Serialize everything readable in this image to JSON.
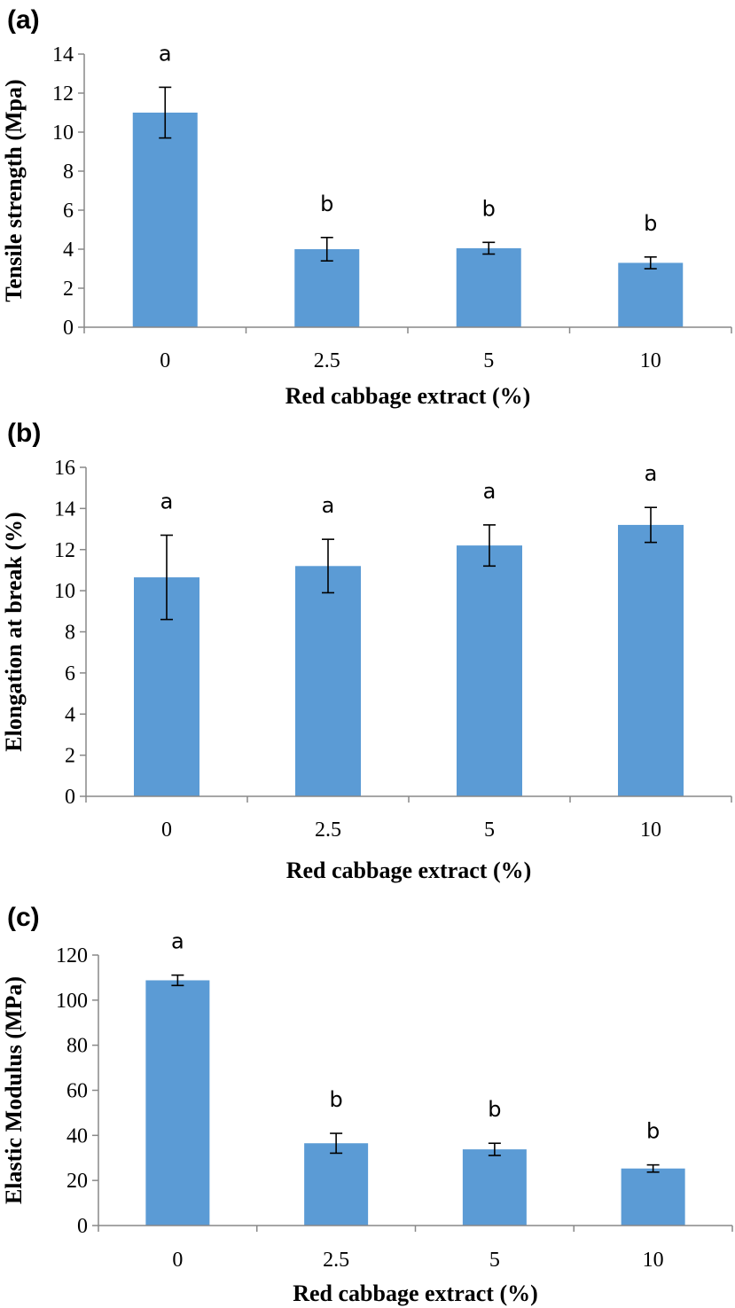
{
  "chart_data": [
    {
      "type": "bar",
      "panel": "(a)",
      "categories": [
        "0",
        "2.5",
        "5",
        "10"
      ],
      "values": [
        11.0,
        4.0,
        4.05,
        3.3
      ],
      "error": [
        1.3,
        0.6,
        0.3,
        0.3
      ],
      "significance": [
        "a",
        "b",
        "b",
        "b"
      ],
      "xlabel": "Red cabbage extract (%)",
      "ylabel": "Tensile strength (Mpa)",
      "ylim": [
        0,
        14
      ],
      "yticks": [
        0,
        2,
        4,
        6,
        8,
        10,
        12,
        14
      ],
      "color": "#5b9bd5",
      "grid": false,
      "legend": "none"
    },
    {
      "type": "bar",
      "panel": "(b)",
      "categories": [
        "0",
        "2.5",
        "5",
        "10"
      ],
      "values": [
        10.65,
        11.2,
        12.2,
        13.2
      ],
      "error": [
        2.05,
        1.3,
        1.0,
        0.85
      ],
      "significance": [
        "a",
        "a",
        "a",
        "a"
      ],
      "xlabel": "Red cabbage extract (%)",
      "ylabel": "Elongation at break (%)",
      "ylim": [
        0,
        16
      ],
      "yticks": [
        0,
        2,
        4,
        6,
        8,
        10,
        12,
        14,
        16
      ],
      "color": "#5b9bd5",
      "grid": false,
      "legend": "none"
    },
    {
      "type": "bar",
      "panel": "(c)",
      "categories": [
        "0",
        "2.5",
        "5",
        "10"
      ],
      "values": [
        108.8,
        36.5,
        33.8,
        25.3
      ],
      "error": [
        2.3,
        4.4,
        2.7,
        1.6
      ],
      "significance": [
        "a",
        "b",
        "b",
        "b"
      ],
      "xlabel": "Red cabbage extract (%)",
      "ylabel": "Elastic Modulus (MPa)",
      "ylim": [
        0,
        120
      ],
      "yticks": [
        0,
        20,
        40,
        60,
        80,
        100,
        120
      ],
      "color": "#5b9bd5",
      "grid": false,
      "legend": "none"
    }
  ]
}
